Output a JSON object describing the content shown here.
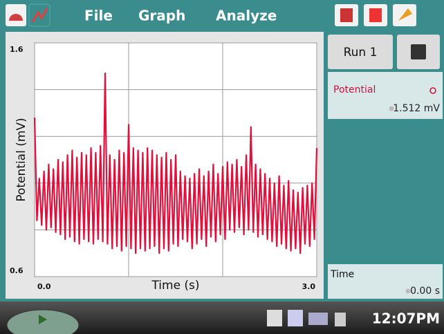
{
  "menu": [
    "File",
    "Graph",
    "Analyze"
  ],
  "chart_data": {
    "type": "line",
    "xlabel": "Time (s)",
    "ylabel": "Potential (mV)",
    "color": "#e0103c",
    "xlim": [
      0,
      3
    ],
    "xticks": [
      0,
      1,
      2,
      3
    ],
    "xtick_labels": [
      {
        "value": 0,
        "label": "0.0"
      },
      {
        "value": 3,
        "label": "3.0"
      }
    ],
    "ylim": [
      0.6,
      1.6
    ],
    "yticks": [
      0.6,
      0.8,
      1.0,
      1.2,
      1.4,
      1.6
    ],
    "ytick_labels": [
      0.6,
      1.6
    ],
    "grid": true,
    "x": [
      0,
      0.025,
      0.05,
      0.075,
      0.1,
      0.125,
      0.15,
      0.175,
      0.2,
      0.225,
      0.25,
      0.275,
      0.3,
      0.325,
      0.35,
      0.375,
      0.4,
      0.425,
      0.45,
      0.475,
      0.5,
      0.525,
      0.55,
      0.575,
      0.6,
      0.625,
      0.65,
      0.675,
      0.7,
      0.725,
      0.75,
      0.775,
      0.8,
      0.825,
      0.85,
      0.875,
      0.9,
      0.925,
      0.95,
      0.975,
      1.0,
      1.025,
      1.05,
      1.075,
      1.1,
      1.125,
      1.15,
      1.175,
      1.2,
      1.225,
      1.25,
      1.275,
      1.3,
      1.325,
      1.35,
      1.375,
      1.4,
      1.425,
      1.45,
      1.475,
      1.5,
      1.525,
      1.55,
      1.575,
      1.6,
      1.625,
      1.65,
      1.675,
      1.7,
      1.725,
      1.75,
      1.775,
      1.8,
      1.825,
      1.85,
      1.875,
      1.9,
      1.925,
      1.95,
      1.975,
      2.0,
      2.025,
      2.05,
      2.075,
      2.1,
      2.125,
      2.15,
      2.175,
      2.2,
      2.225,
      2.25,
      2.275,
      2.3,
      2.325,
      2.35,
      2.375,
      2.4,
      2.425,
      2.45,
      2.475,
      2.5,
      2.525,
      2.55,
      2.575,
      2.6,
      2.625,
      2.65,
      2.675,
      2.7,
      2.725,
      2.75,
      2.775,
      2.8,
      2.825,
      2.85,
      2.875,
      2.9,
      2.925,
      2.95,
      2.975,
      3.0
    ],
    "values": [
      1.28,
      0.84,
      1.02,
      0.82,
      1.05,
      0.8,
      1.08,
      0.81,
      1.06,
      0.79,
      1.1,
      0.78,
      1.09,
      0.76,
      1.12,
      0.77,
      1.14,
      0.75,
      1.11,
      0.74,
      1.13,
      0.76,
      1.12,
      0.75,
      1.15,
      0.74,
      1.13,
      0.76,
      1.16,
      0.75,
      1.47,
      0.74,
      1.12,
      0.72,
      1.1,
      0.73,
      1.14,
      0.71,
      1.13,
      0.73,
      1.25,
      0.72,
      1.15,
      0.7,
      1.14,
      0.72,
      1.13,
      0.71,
      1.15,
      0.72,
      1.14,
      0.73,
      1.12,
      0.7,
      1.11,
      0.72,
      1.13,
      0.71,
      1.1,
      0.74,
      1.12,
      0.73,
      1.05,
      0.76,
      1.03,
      0.75,
      1.02,
      0.72,
      1.04,
      0.74,
      1.06,
      0.76,
      1.03,
      0.73,
      1.05,
      0.77,
      1.08,
      0.75,
      1.04,
      0.78,
      1.07,
      0.76,
      1.09,
      0.8,
      1.08,
      0.79,
      1.1,
      0.81,
      1.07,
      0.78,
      1.12,
      0.8,
      1.24,
      0.79,
      1.08,
      0.77,
      1.06,
      0.78,
      1.04,
      0.76,
      1.02,
      0.75,
      1.0,
      0.73,
      1.03,
      0.74,
      0.99,
      0.72,
      1.01,
      0.71,
      0.97,
      0.72,
      0.96,
      0.7,
      0.98,
      0.74,
      0.99,
      0.73,
      1.0,
      0.76,
      1.15
    ]
  },
  "sidebar": {
    "run": "Run 1",
    "sensor": {
      "name": "Potential",
      "reading": "1.512 mV"
    },
    "time": {
      "name": "Time",
      "reading": "0.00 s"
    }
  },
  "taskbar": {
    "clock": "12:07PM"
  }
}
